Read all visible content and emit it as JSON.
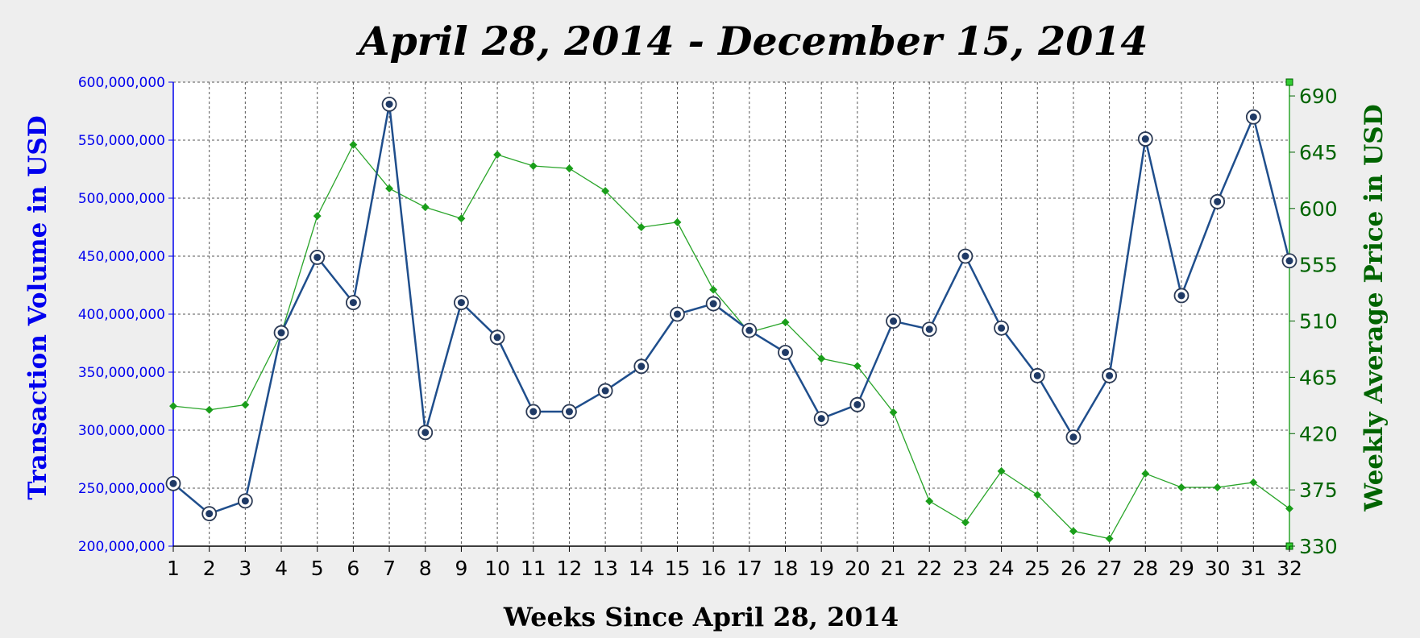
{
  "chart_data": {
    "type": "line",
    "title": "April 28, 2014 - December 15, 2014",
    "xlabel": "Weeks Since April 28, 2014",
    "ylabel_left": "Transaction Volume in USD",
    "ylabel_right": "Weekly Average Price in USD",
    "x": [
      1,
      2,
      3,
      4,
      5,
      6,
      7,
      8,
      9,
      10,
      11,
      12,
      13,
      14,
      15,
      16,
      17,
      18,
      19,
      20,
      21,
      22,
      23,
      24,
      25,
      26,
      27,
      28,
      29,
      30,
      31,
      32
    ],
    "y_left": {
      "min": 200000000,
      "max": 600000000,
      "ticks": [
        200000000,
        250000000,
        300000000,
        350000000,
        400000000,
        450000000,
        500000000,
        550000000,
        600000000
      ],
      "tick_labels": [
        "200,000,000",
        "250,000,000",
        "300,000,000",
        "350,000,000",
        "400,000,000",
        "450,000,000",
        "500,000,000",
        "550,000,000",
        "600,000,000"
      ]
    },
    "y_right": {
      "min": 330,
      "max": 701,
      "ticks": [
        330,
        375,
        420,
        465,
        510,
        555,
        600,
        645,
        690
      ],
      "tick_labels": [
        "330",
        "375",
        "420",
        "465",
        "510",
        "555",
        "600",
        "645",
        "690"
      ]
    },
    "series": [
      {
        "name": "Transaction Volume",
        "axis": "left",
        "color": "#1f4e8c",
        "values": [
          254000000,
          228000000,
          239000000,
          384000000,
          449000000,
          410000000,
          581000000,
          298000000,
          410000000,
          380000000,
          316000000,
          316000000,
          334000000,
          355000000,
          400000000,
          409000000,
          386000000,
          367000000,
          310000000,
          322000000,
          394000000,
          387000000,
          450000000,
          388000000,
          347000000,
          294000000,
          347000000,
          551000000,
          416000000,
          497000000,
          570000000,
          446000000
        ]
      },
      {
        "name": "Weekly Average Price",
        "axis": "right",
        "color": "#2aa52a",
        "values": [
          442,
          439,
          443,
          500,
          594,
          651,
          616,
          601,
          592,
          643,
          634,
          632,
          614,
          585,
          589,
          535,
          501,
          509,
          480,
          474,
          437,
          366,
          349,
          390,
          371,
          342,
          336,
          388,
          377,
          377,
          381,
          360
        ]
      }
    ],
    "grid": true,
    "colors": {
      "left_axis": "#0000ee",
      "right_axis": "#006400",
      "title": "#000000"
    }
  }
}
